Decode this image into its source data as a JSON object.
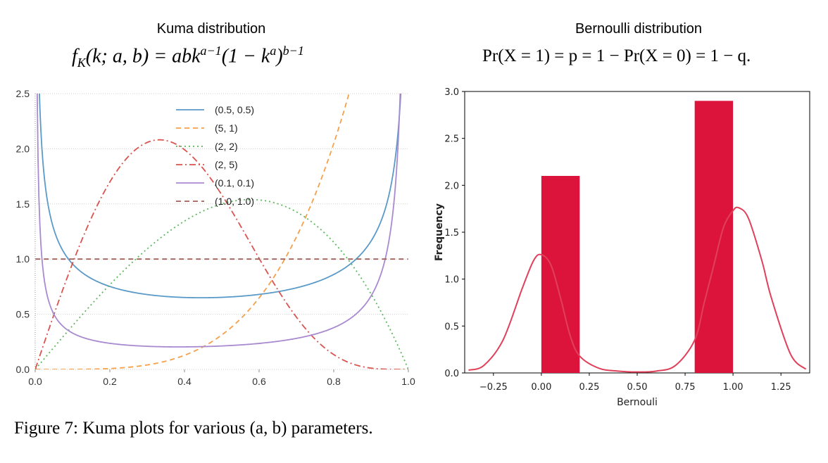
{
  "left": {
    "title": "Kuma distribution",
    "formula": {
      "lhs": "f",
      "sub": "K",
      "args": "(k; a, b) = abk",
      "exp1": "a−1",
      "mid": "(1 − k",
      "exp2": "a",
      "close": ")",
      "exp3": "b−1"
    },
    "caption": "Figure 7: Kuma plots for various (a, b) parameters."
  },
  "right": {
    "title": "Bernoulli distribution",
    "formula": "Pr(X = 1) = p = 1 − Pr(X = 0) = 1 − q."
  },
  "chart_data": [
    {
      "type": "line",
      "xlim": [
        0.0,
        1.0
      ],
      "ylim": [
        0.0,
        2.5
      ],
      "x_ticks": [
        "0.0",
        "0.2",
        "0.4",
        "0.6",
        "0.8",
        "1.0"
      ],
      "y_ticks": [
        "0.0",
        "0.5",
        "1.0",
        "1.5",
        "2.0",
        "2.5"
      ],
      "grid": true,
      "legend": "top-center",
      "series": [
        {
          "name": "(0.5, 0.5)",
          "a": 0.5,
          "b": 0.5,
          "color": "#5a9ac8",
          "style": "solid"
        },
        {
          "name": "(5, 1)",
          "a": 5,
          "b": 1,
          "color": "#f5a04a",
          "style": "dashed"
        },
        {
          "name": "(2, 2)",
          "a": 2,
          "b": 2,
          "color": "#5cb85c",
          "style": "dotted"
        },
        {
          "name": "(2, 5)",
          "a": 2,
          "b": 5,
          "color": "#d9534f",
          "style": "dashdot"
        },
        {
          "name": "(0.1, 0.1)",
          "a": 0.1,
          "b": 0.1,
          "color": "#a98ad0",
          "style": "solid"
        },
        {
          "name": "(1.0, 1.0)",
          "a": 1.0,
          "b": 1.0,
          "color": "#a0605a",
          "style": "dashed"
        }
      ]
    },
    {
      "type": "bar",
      "xlabel": "Bernouli",
      "ylabel": "Frequency",
      "xlim": [
        -0.4,
        1.4
      ],
      "ylim": [
        0.0,
        3.0
      ],
      "x_ticks": [
        "−0.25",
        "0.00",
        "0.25",
        "0.50",
        "0.75",
        "1.00",
        "1.25"
      ],
      "y_ticks": [
        "0.0",
        "0.5",
        "1.0",
        "1.5",
        "2.0",
        "2.5",
        "3.0"
      ],
      "bars": [
        {
          "x0": 0.0,
          "x1": 0.2,
          "value": 2.1
        },
        {
          "x0": 0.8,
          "x1": 1.0,
          "value": 2.9
        }
      ],
      "bar_color": "#dc143c",
      "kde": {
        "color": "#e0405a",
        "x": [
          -0.38,
          -0.3,
          -0.2,
          -0.1,
          -0.04,
          0.0,
          0.05,
          0.1,
          0.15,
          0.2,
          0.3,
          0.4,
          0.5,
          0.6,
          0.7,
          0.8,
          0.85,
          0.9,
          0.95,
          1.0,
          1.03,
          1.08,
          1.15,
          1.2,
          1.3,
          1.38
        ],
        "y": [
          0.03,
          0.08,
          0.35,
          0.9,
          1.2,
          1.26,
          1.15,
          0.8,
          0.4,
          0.18,
          0.05,
          0.02,
          0.01,
          0.02,
          0.08,
          0.35,
          0.75,
          1.15,
          1.55,
          1.73,
          1.76,
          1.65,
          1.2,
          0.8,
          0.2,
          0.04
        ]
      }
    }
  ]
}
